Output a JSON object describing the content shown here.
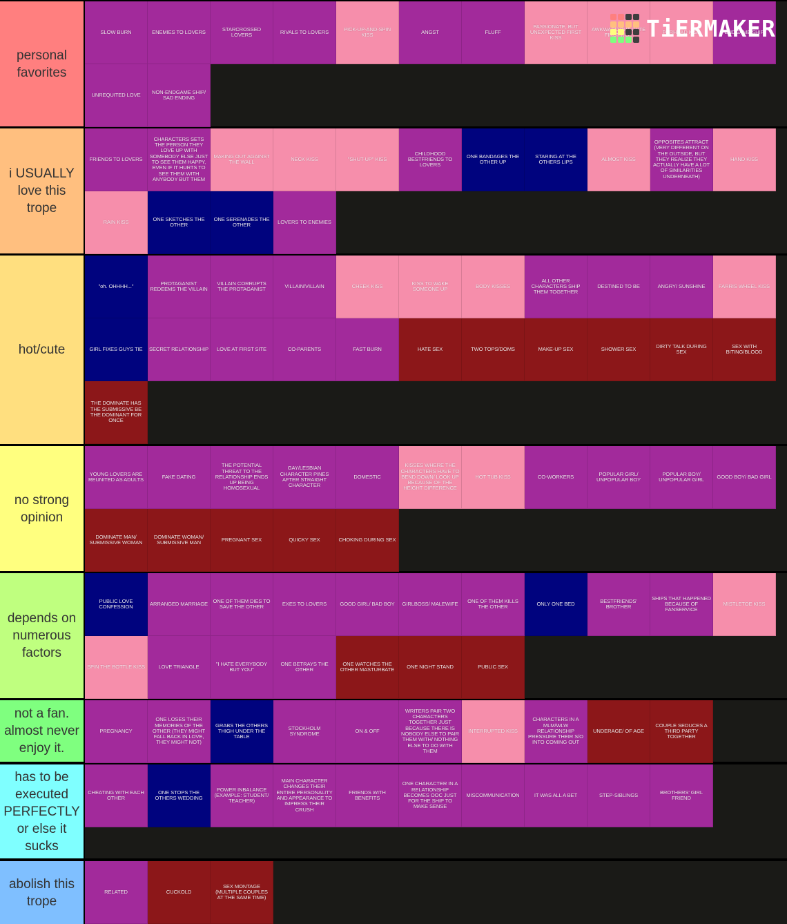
{
  "logo": {
    "text": "TiERMAKER",
    "grid_colors": [
      "#fe7f7f",
      "#fe7f7f",
      "#3e3e3e",
      "#3e3e3e",
      "#ffbf7f",
      "#ffbf7f",
      "#ffbf7f",
      "#ffbf7f",
      "#ffff7f",
      "#ffff7f",
      "#3e3e3e",
      "#3e3e3e",
      "#7fff7f",
      "#7fff7f",
      "#7fff7f",
      "#3e3e3e"
    ]
  },
  "colors": {
    "purple": "#a22a9b",
    "pink": "#f68eab",
    "navy": "#00037e",
    "red": "#8c1719",
    "background": "#1a1a17"
  },
  "tiers": [
    {
      "label": "personal favorites",
      "color": "#ff7f7f",
      "items": [
        {
          "text": "SLOW BURN",
          "color": "purple"
        },
        {
          "text": "ENEMIES TO LOVERS",
          "color": "purple"
        },
        {
          "text": "STARCROSSED LOVERS",
          "color": "purple"
        },
        {
          "text": "RIVALS TO LOVERS",
          "color": "purple"
        },
        {
          "text": "PICK-UP-AND-SPIN KISS",
          "color": "pink"
        },
        {
          "text": "ANGST",
          "color": "purple"
        },
        {
          "text": "FLUFF",
          "color": "purple"
        },
        {
          "text": "PASSIONATE, BUT UNEXPECTED FIRST KISS",
          "color": "pink"
        },
        {
          "text": "AWKWARD BUT CUTE FIRST KISS",
          "color": "pink"
        },
        {
          "text": "FORHEAD KISS",
          "color": "pink"
        },
        {
          "text": "ENDGAME SHIP",
          "color": "purple"
        },
        {
          "text": "UNREQUITED LOVE",
          "color": "purple"
        },
        {
          "text": "NON-ENDGAME SHIP/ SAD ENDING",
          "color": "purple"
        }
      ]
    },
    {
      "label": "i USUALLY love this trope",
      "color": "#ffbf7f",
      "items": [
        {
          "text": "FRIENDS TO LOVERS",
          "color": "purple"
        },
        {
          "text": "CHARACTERS SETS THE PERSON THEY LOVE UP WITH SOMEBODY ELSE JUST TO SEE THEM HAPPY, EVEN IF IT HURTS TO SEE THEM WITH ANYBODY BUT THEM",
          "color": "purple"
        },
        {
          "text": "MAKING OUT AGAINST THE WALL",
          "color": "pink"
        },
        {
          "text": "NECK KISS",
          "color": "pink"
        },
        {
          "text": "\"SHUT-UP\" KISS",
          "color": "pink"
        },
        {
          "text": "CHILDHOOD BESTFRIENDS TO LOVERS",
          "color": "purple"
        },
        {
          "text": "ONE BANDAGES THE OTHER UP",
          "color": "navy"
        },
        {
          "text": "STARING AT THE OTHERS LIPS",
          "color": "navy"
        },
        {
          "text": "ALMOST KISS",
          "color": "pink"
        },
        {
          "text": "OPPOSITES ATTRACT (VERY DIFFERENT ON THE OUTSIDE, BUT THEY REALIZE THEY ACTUALLY HAVE A LOT OF SIMILARITIES UNDERNEATH)",
          "color": "purple"
        },
        {
          "text": "HAND KISS",
          "color": "pink"
        },
        {
          "text": "RAIN KISS",
          "color": "pink"
        },
        {
          "text": "ONE SKETCHES THE OTHER",
          "color": "navy"
        },
        {
          "text": "ONE SERENADES THE OTHER",
          "color": "navy"
        },
        {
          "text": "LOVERS TO ENEMIES",
          "color": "purple"
        }
      ]
    },
    {
      "label": "hot/cute",
      "color": "#ffdf7f",
      "items": [
        {
          "text": "\"oh. OHHHH...\"",
          "color": "navy"
        },
        {
          "text": "PROTAGANIST REDEEMS THE VILLAIN",
          "color": "purple"
        },
        {
          "text": "VILLAIN CORRUPTS THE PROTAGANIST",
          "color": "purple"
        },
        {
          "text": "VILLAIN/VILLAIN",
          "color": "purple"
        },
        {
          "text": "CHEEK KISS",
          "color": "pink"
        },
        {
          "text": "KISS TO WAKE SOMEONE UP",
          "color": "pink"
        },
        {
          "text": "BODY KISSES",
          "color": "pink"
        },
        {
          "text": "ALL OTHER CHARACTERS SHIP THEM TOGETHER",
          "color": "purple"
        },
        {
          "text": "DESTINED TO BE",
          "color": "purple"
        },
        {
          "text": "ANGRY/ SUNSHINE",
          "color": "purple"
        },
        {
          "text": "FARRIS WHEEL KISS",
          "color": "pink"
        },
        {
          "text": "GIRL FIXES GUYS TIE",
          "color": "navy"
        },
        {
          "text": "SECRET RELATIONSHIP",
          "color": "purple"
        },
        {
          "text": "LOVE AT FIRST SITE",
          "color": "purple"
        },
        {
          "text": "CO-PARENTS",
          "color": "purple"
        },
        {
          "text": "FAST BURN",
          "color": "purple"
        },
        {
          "text": "HATE SEX",
          "color": "red"
        },
        {
          "text": "TWO TOPS/DOMS",
          "color": "red"
        },
        {
          "text": "MAKE-UP SEX",
          "color": "red"
        },
        {
          "text": "SHOWER SEX",
          "color": "red"
        },
        {
          "text": "DIRTY TALK DURING SEX",
          "color": "red"
        },
        {
          "text": "SEX WITH BITING/BLOOD",
          "color": "red"
        },
        {
          "text": "THE DOMINATE HAS THE SUBMISSIVE BE THE DOMINANT FOR ONCE",
          "color": "red"
        }
      ]
    },
    {
      "label": "no strong opinion",
      "color": "#ffff7f",
      "items": [
        {
          "text": "YOUNG LOVERS ARE REUNITED AS ADULTS",
          "color": "purple"
        },
        {
          "text": "FAKE DATING",
          "color": "purple"
        },
        {
          "text": "THE POTENTIAL THREAT TO THE RELATIONSHIP ENDS UP BEING HOMOSEXUAL",
          "color": "purple"
        },
        {
          "text": "GAY/LESBIAN CHARACTER PINES AFTER STRAIGHT CHARACTER",
          "color": "purple"
        },
        {
          "text": "DOMESTIC",
          "color": "purple"
        },
        {
          "text": "KISSES WHERE THE CHARACTERS HAVE TO BEND DOWN/ LOOK UP BECAUSE OF THE HEIGHT DIFFERENCE",
          "color": "pink"
        },
        {
          "text": "HOT TUB KISS",
          "color": "pink"
        },
        {
          "text": "CO-WORKERS",
          "color": "purple"
        },
        {
          "text": "POPULAR GIRL/ UNPOPULAR BOY",
          "color": "purple"
        },
        {
          "text": "POPULAR BOY/ UNPOPULAR GIRL",
          "color": "purple"
        },
        {
          "text": "GOOD BOY/ BAD GIRL",
          "color": "purple"
        },
        {
          "text": "DOMINATE MAN/ SUBMISSIVE WOMAN",
          "color": "red"
        },
        {
          "text": "DOMINATE WOMAN/ SUBMISSIVE MAN",
          "color": "red"
        },
        {
          "text": "PREGNANT SEX",
          "color": "red"
        },
        {
          "text": "QUICKY SEX",
          "color": "red"
        },
        {
          "text": "CHOKING DURING SEX",
          "color": "red"
        }
      ]
    },
    {
      "label": "depends on numerous factors",
      "color": "#bfff7f",
      "items": [
        {
          "text": "PUBLIC LOVE CONFESSION",
          "color": "navy"
        },
        {
          "text": "ARRANGED MARRIAGE",
          "color": "purple"
        },
        {
          "text": "ONE OF THEM DIES TO SAVE THE OTHER",
          "color": "purple"
        },
        {
          "text": "EXES TO LOVERS",
          "color": "purple"
        },
        {
          "text": "GOOD GIRL/ BAD BOY",
          "color": "purple"
        },
        {
          "text": "GIRLBOSS/ MALEWIFE",
          "color": "purple"
        },
        {
          "text": "ONE OF THEM KILLS THE OTHER",
          "color": "purple"
        },
        {
          "text": "ONLY ONE BED",
          "color": "navy"
        },
        {
          "text": "BESTFRIENDS' BROTHER",
          "color": "purple"
        },
        {
          "text": "SHIPS THAT HAPPENED BECAUSE OF FANSERVICE",
          "color": "purple"
        },
        {
          "text": "MISTLETOE KISS",
          "color": "pink"
        },
        {
          "text": "SPIN THE BOTTLE KISS",
          "color": "pink"
        },
        {
          "text": "LOVE TRIANGLE",
          "color": "purple"
        },
        {
          "text": "\"I HATE EVERYBODY BUT YOU\"",
          "color": "purple"
        },
        {
          "text": "ONE BETRAYS THE OTHER",
          "color": "purple"
        },
        {
          "text": "ONE WATCHES THE OTHER MASTURBATE",
          "color": "red"
        },
        {
          "text": "ONE NIGHT STAND",
          "color": "red"
        },
        {
          "text": "PUBLIC SEX",
          "color": "red"
        }
      ]
    },
    {
      "label": "not a fan. almost never enjoy it.",
      "color": "#7fff7f",
      "items": [
        {
          "text": "PREGNANCY",
          "color": "purple"
        },
        {
          "text": "ONE LOSES THEIR MEMORIES OF THE OTHER (THEY MIGHT FALL BACK IN LOVE, THEY MIGHT NOT)",
          "color": "purple"
        },
        {
          "text": "GRABS THE OTHERS THIGH UNDER THE TABLE",
          "color": "navy"
        },
        {
          "text": "STOCKHOLM SYNDROME",
          "color": "purple"
        },
        {
          "text": "ON & OFF",
          "color": "purple"
        },
        {
          "text": "WRITERS PAIR TWO CHARACTERS TOGETHER JUST BECAUSE THERE IS NOBODY ELSE TO PAIR THEM WITH/ NOTHING ELSE TO DO WITH THEM",
          "color": "purple"
        },
        {
          "text": "INTERRUPTED KISS",
          "color": "pink"
        },
        {
          "text": "CHARACTERS IN A MLM/WLW RELATIONSHIP PRESSURE THEIR S/O INTO COMING OUT",
          "color": "purple"
        },
        {
          "text": "UNDERAGE/ OF AGE",
          "color": "red"
        },
        {
          "text": "COUPLE SEDUCES A THIRD PARTY TOGETHER",
          "color": "red"
        }
      ]
    },
    {
      "label": "has to be executed PERFECTLY or else it sucks",
      "color": "#7fffff",
      "items": [
        {
          "text": "CHEATING WITH EACH OTHER",
          "color": "purple"
        },
        {
          "text": "ONE STOPS THE OTHERS WEDDING",
          "color": "navy"
        },
        {
          "text": "POWER INBALANCE (EXAMPLE: STUDENT/ TEACHER)",
          "color": "purple"
        },
        {
          "text": "MAIN CHARACTER CHANGES THEIR ENTIRE PERSONALITY AND APPEARANCE TO IMPRESS THEIR CRUSH",
          "color": "purple"
        },
        {
          "text": "FRIENDS WITH BENEFITS",
          "color": "purple"
        },
        {
          "text": "ONE CHARACTER IN A RELATIONSHIP BECOMES OOC JUST FOR THE SHIP TO MAKE SENSE",
          "color": "purple"
        },
        {
          "text": "MISCOMMUNICATION",
          "color": "purple"
        },
        {
          "text": "IT WAS ALL A BET",
          "color": "purple"
        },
        {
          "text": "STEP-SIBLINGS",
          "color": "purple"
        },
        {
          "text": "BROTHERS' GIRL FRIEND",
          "color": "purple"
        }
      ]
    },
    {
      "label": "abolish this trope",
      "color": "#7fbfff",
      "items": [
        {
          "text": "RELATED",
          "color": "purple"
        },
        {
          "text": "CUCKOLD",
          "color": "red"
        },
        {
          "text": "SEX MONTAGE (MULTIPLE COUPLES AT THE SAME TIME)",
          "color": "red"
        }
      ]
    }
  ]
}
